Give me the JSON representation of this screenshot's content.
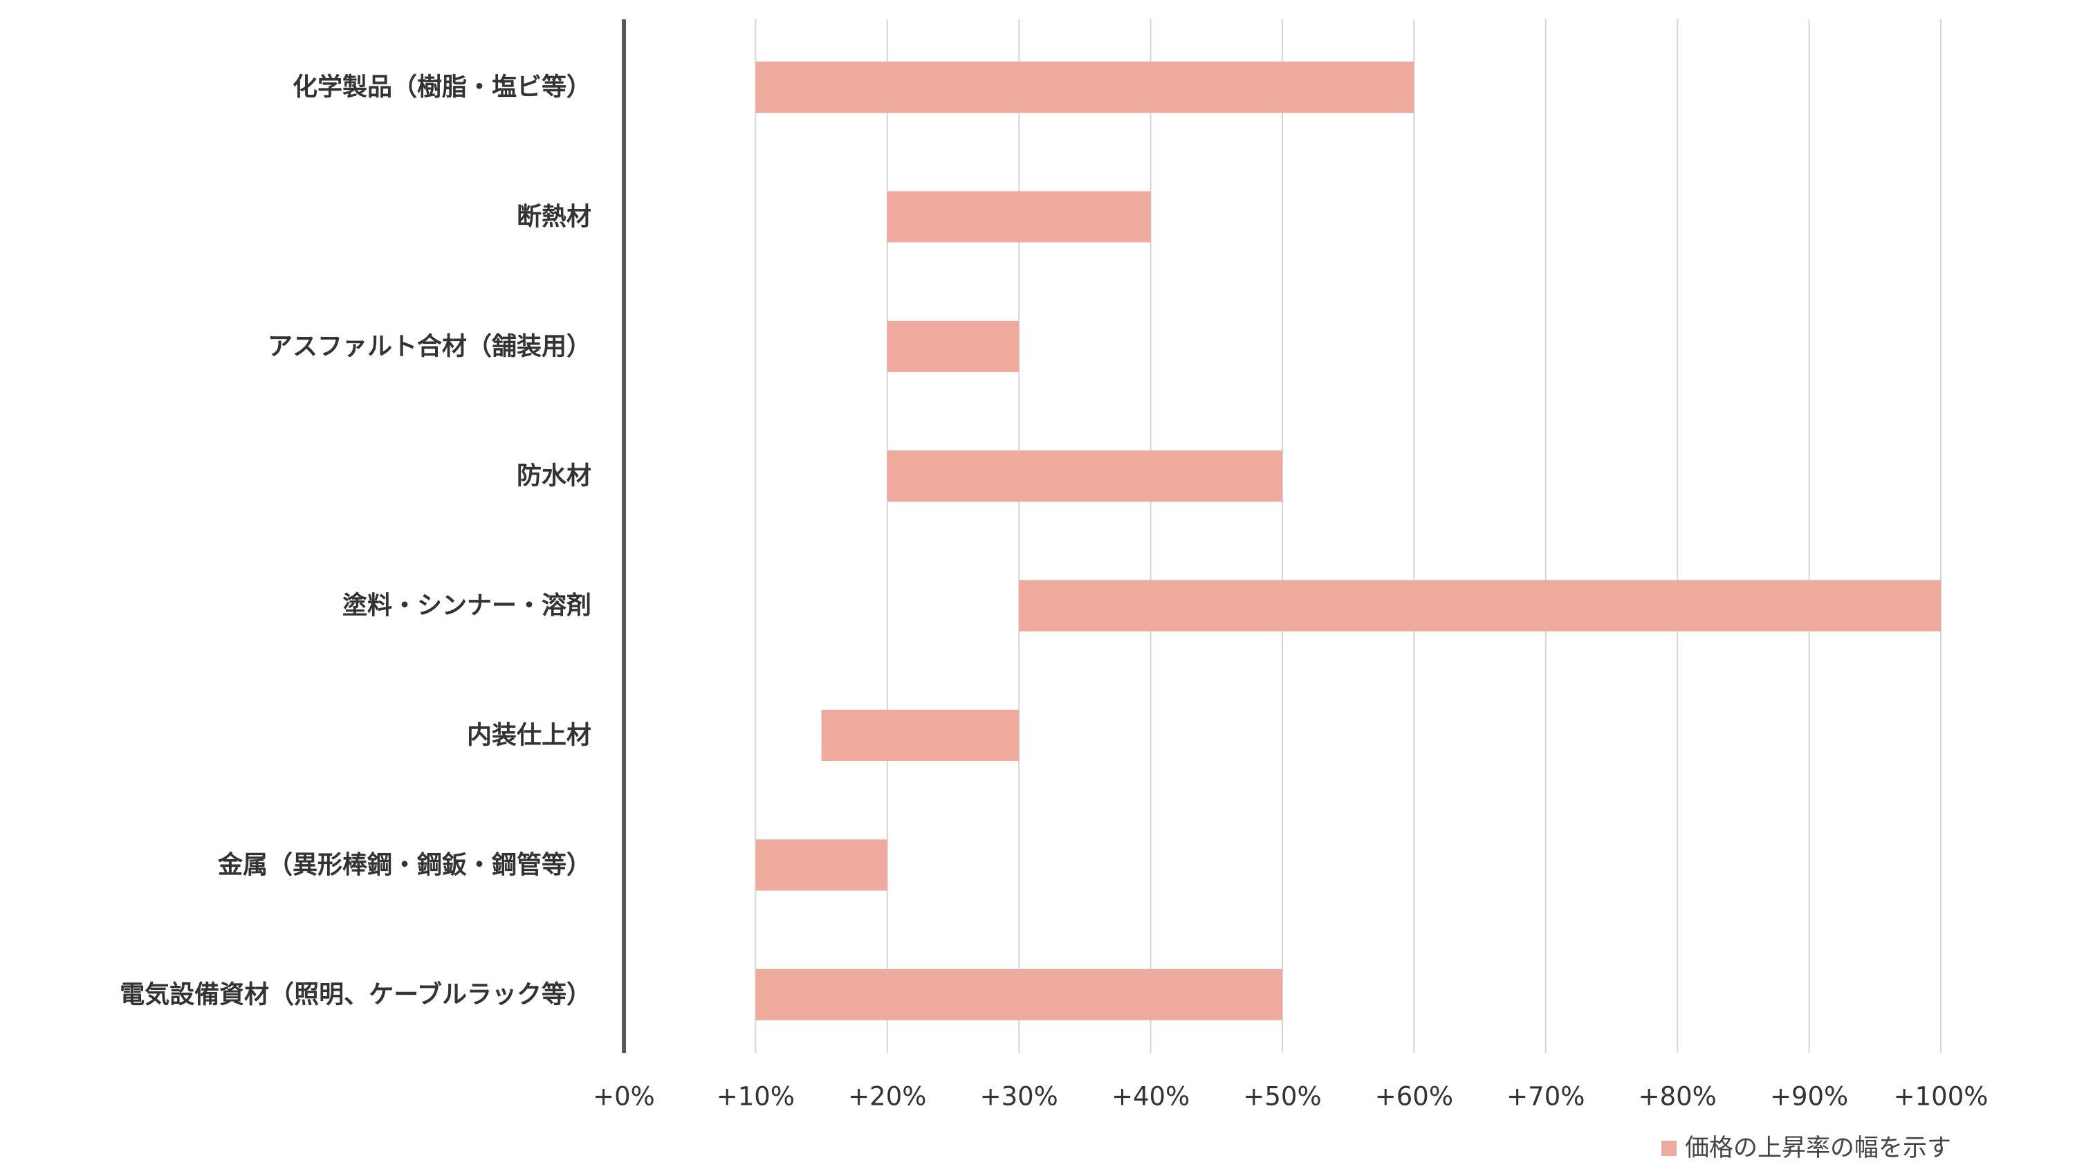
{
  "chart_data": {
    "type": "bar",
    "orientation": "horizontal",
    "style": "floating-range",
    "categories": [
      "化学製品（樹脂・塩ビ等）",
      "断熱材",
      "アスファルト合材（舗装用）",
      "防水材",
      "塗料・シンナー・溶剤",
      "内装仕上材",
      "金属（異形棒鋼・鋼鈑・鋼管等）",
      "電気設備資材（照明、ケーブルラック等）"
    ],
    "series": [
      {
        "name": "価格の上昇率の幅を示す",
        "ranges": [
          [
            10,
            60
          ],
          [
            20,
            40
          ],
          [
            20,
            30
          ],
          [
            20,
            50
          ],
          [
            30,
            100
          ],
          [
            15,
            30
          ],
          [
            10,
            20
          ],
          [
            10,
            50
          ]
        ]
      }
    ],
    "xlim": [
      0,
      100
    ],
    "xticks": [
      0,
      10,
      20,
      30,
      40,
      50,
      60,
      70,
      80,
      90,
      100
    ],
    "xtick_labels": [
      "+0%",
      "+10%",
      "+20%",
      "+30%",
      "+40%",
      "+50%",
      "+60%",
      "+70%",
      "+80%",
      "+90%",
      "+100%"
    ],
    "title": "",
    "xlabel": "",
    "ylabel": "",
    "grid": "vertical",
    "legend_position": "bottom-right",
    "colors": {
      "bar": "#eeaa9c",
      "grid": "#d5d5d5",
      "axis": "#595959",
      "text": "#333333"
    }
  }
}
